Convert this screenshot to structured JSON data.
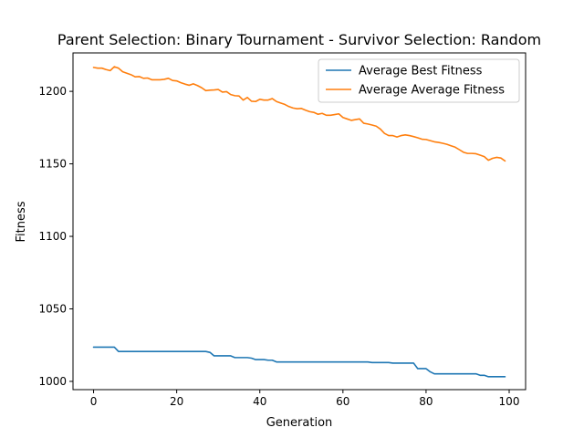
{
  "chart_data": {
    "type": "line",
    "title": "Parent Selection: Binary Tournament - Survivor Selection: Random",
    "xlabel": "Generation",
    "ylabel": "Fitness",
    "xlim": [
      -4.95,
      103.95
    ],
    "ylim": [
      994.3,
      1226.5
    ],
    "xticks": [
      0,
      20,
      40,
      60,
      80,
      100
    ],
    "yticks": [
      1000,
      1050,
      1100,
      1150,
      1200
    ],
    "legend_position": "top-right",
    "grid": false,
    "series": [
      {
        "name": "Average Best Fitness",
        "color": "#1f77b4",
        "x": [
          0,
          1,
          2,
          3,
          4,
          5,
          6,
          7,
          8,
          9,
          10,
          11,
          12,
          13,
          14,
          15,
          16,
          17,
          18,
          19,
          20,
          21,
          22,
          23,
          24,
          25,
          26,
          27,
          28,
          29,
          30,
          31,
          32,
          33,
          34,
          35,
          36,
          37,
          38,
          39,
          40,
          41,
          42,
          43,
          44,
          45,
          46,
          47,
          48,
          49,
          50,
          51,
          52,
          53,
          54,
          55,
          56,
          57,
          58,
          59,
          60,
          61,
          62,
          63,
          64,
          65,
          66,
          67,
          68,
          69,
          70,
          71,
          72,
          73,
          74,
          75,
          76,
          77,
          78,
          79,
          80,
          81,
          82,
          83,
          84,
          85,
          86,
          87,
          88,
          89,
          90,
          91,
          92,
          93,
          94,
          95,
          96,
          97,
          98,
          99
        ],
        "y": [
          1023.6,
          1023.6,
          1023.6,
          1023.6,
          1023.6,
          1023.6,
          1020.6,
          1020.6,
          1020.6,
          1020.6,
          1020.6,
          1020.6,
          1020.6,
          1020.6,
          1020.6,
          1020.6,
          1020.6,
          1020.6,
          1020.6,
          1020.6,
          1020.6,
          1020.6,
          1020.6,
          1020.6,
          1020.6,
          1020.6,
          1020.6,
          1020.6,
          1020.0,
          1017.6,
          1017.6,
          1017.6,
          1017.6,
          1017.6,
          1016.4,
          1016.4,
          1016.4,
          1016.4,
          1016.0,
          1015.0,
          1015.0,
          1015.0,
          1014.6,
          1014.6,
          1013.4,
          1013.4,
          1013.4,
          1013.4,
          1013.4,
          1013.4,
          1013.4,
          1013.4,
          1013.4,
          1013.4,
          1013.4,
          1013.4,
          1013.4,
          1013.4,
          1013.4,
          1013.4,
          1013.4,
          1013.4,
          1013.4,
          1013.4,
          1013.4,
          1013.4,
          1013.4,
          1013.0,
          1013.0,
          1013.0,
          1013.0,
          1013.0,
          1012.6,
          1012.6,
          1012.6,
          1012.6,
          1012.6,
          1012.6,
          1008.8,
          1008.8,
          1008.8,
          1006.6,
          1005.2,
          1005.2,
          1005.2,
          1005.2,
          1005.2,
          1005.2,
          1005.2,
          1005.2,
          1005.2,
          1005.2,
          1005.2,
          1004.2,
          1004.2,
          1003.2,
          1003.2,
          1003.2,
          1003.2,
          1003.2
        ]
      },
      {
        "name": "Average Average Fitness",
        "color": "#ff7f0e",
        "x": [
          0,
          1,
          2,
          3,
          4,
          5,
          6,
          7,
          8,
          9,
          10,
          11,
          12,
          13,
          14,
          15,
          16,
          17,
          18,
          19,
          20,
          21,
          22,
          23,
          24,
          25,
          26,
          27,
          28,
          29,
          30,
          31,
          32,
          33,
          34,
          35,
          36,
          37,
          38,
          39,
          40,
          41,
          42,
          43,
          44,
          45,
          46,
          47,
          48,
          49,
          50,
          51,
          52,
          53,
          54,
          55,
          56,
          57,
          58,
          59,
          60,
          61,
          62,
          63,
          64,
          65,
          66,
          67,
          68,
          69,
          70,
          71,
          72,
          73,
          74,
          75,
          76,
          77,
          78,
          79,
          80,
          81,
          82,
          83,
          84,
          85,
          86,
          87,
          88,
          89,
          90,
          91,
          92,
          93,
          94,
          95,
          96,
          97,
          98,
          99
        ],
        "y": [
          1216.5,
          1216.0,
          1216.0,
          1215.0,
          1214.3,
          1217.0,
          1216.0,
          1213.5,
          1212.5,
          1211.5,
          1210.0,
          1210.2,
          1209.0,
          1209.2,
          1208.0,
          1208.0,
          1208.0,
          1208.3,
          1209.0,
          1207.5,
          1207.2,
          1206.0,
          1205.0,
          1204.2,
          1205.2,
          1204.0,
          1202.5,
          1200.5,
          1200.8,
          1201.0,
          1201.3,
          1199.5,
          1199.8,
          1197.8,
          1197.0,
          1196.8,
          1194.0,
          1195.8,
          1193.2,
          1193.0,
          1194.5,
          1194.0,
          1194.0,
          1195.0,
          1193.0,
          1192.0,
          1191.0,
          1189.5,
          1188.5,
          1188.0,
          1188.2,
          1187.0,
          1186.0,
          1185.5,
          1184.2,
          1184.8,
          1183.5,
          1183.5,
          1184.0,
          1184.5,
          1182.0,
          1181.0,
          1180.0,
          1180.5,
          1181.0,
          1178.0,
          1177.5,
          1176.8,
          1176.0,
          1174.0,
          1171.0,
          1169.5,
          1169.5,
          1168.5,
          1169.5,
          1170.0,
          1169.5,
          1168.8,
          1168.0,
          1167.0,
          1166.8,
          1166.0,
          1165.2,
          1164.8,
          1164.2,
          1163.5,
          1162.5,
          1161.5,
          1159.8,
          1158.0,
          1157.2,
          1157.2,
          1157.0,
          1156.0,
          1155.0,
          1152.5,
          1153.8,
          1154.5,
          1154.0,
          1152.0
        ]
      }
    ]
  }
}
